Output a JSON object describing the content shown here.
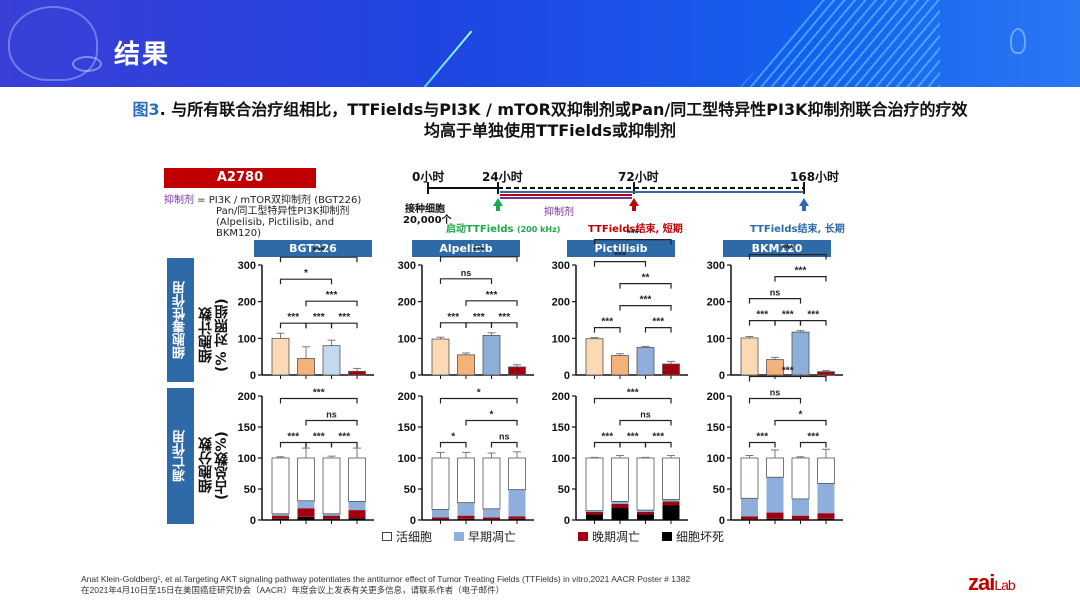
{
  "banner": {
    "title": "结果"
  },
  "figure": {
    "number": "图3",
    "title_line1": ". 与所有联合治疗组相比，TTFields与PI3K / mTOR双抑制剂或Pan/同工型特异性PI3K抑制剂联合治疗的疗效",
    "title_line2": "均高于单独使用TTFields或抑制剂"
  },
  "cell_line": "A2780",
  "inhibitor_def": {
    "label": "抑制剂",
    "eq": " = PI3K / mTOR双抑制剂 (BGT226)",
    "line2": "Pan/同工型特异性PI3K抑制剂",
    "line3": "(Alpelisib, Pictilisib, and",
    "line4": "BKM120)"
  },
  "timeline": {
    "t0": "0小时",
    "t24": "24小时",
    "t72": "72小时",
    "t168": "168小时",
    "seed_line1": "接种细胞",
    "seed_line2": "20,000个",
    "inhibitor": "抑制剂",
    "start": "启动TTFields",
    "start_freq": "(200 kHz)",
    "end_short": "TTFields结束, 短期",
    "end_long": "TTFields结束, 长期",
    "colors": {
      "start": "#1fa84b",
      "end_short": "#c00000",
      "end_long": "#2e6aa8",
      "inhibitor": "#7030a0"
    }
  },
  "row_labels": {
    "cytotoxic": "细胞毒性作用",
    "apoptosis": "凋亡作用"
  },
  "y_labels": {
    "cytotoxic_1": "细胞计数",
    "cytotoxic_2": "(% 对照组)",
    "apoptosis_1": "细胞分数",
    "apoptosis_2": "(占总数%)"
  },
  "legend": {
    "live": "活细胞",
    "early": "早期凋亡",
    "late": "晚期凋亡",
    "necrosis": "细胞坏死"
  },
  "footer": {
    "line1": "Anat Klein-Goldberg¹, et al.Targeting AKT signaling pathway potentiates the antitumor effect of Tumor Treating Fields (TTFields) in vitro,2021 AACR Poster # 1382",
    "line2": "在2021年4月10日至15日在美国癌症研究协会（AACR）年度会议上发表有关更多信息，请联系作者（电子邮件）"
  },
  "logo": {
    "main": "zai",
    "sub": "Lab"
  },
  "chart_data": [
    {
      "type": "bar",
      "title": "BGT226",
      "panel": "cytotoxicity",
      "ylabel": "细胞计数 (% 对照组)",
      "ylim": [
        0,
        300
      ],
      "yticks": [
        0,
        100,
        200,
        300
      ],
      "values": [
        100,
        45,
        80,
        10
      ],
      "errors": [
        14,
        32,
        15,
        8
      ],
      "bar_colors": [
        "#fbd9b4",
        "#f2b27a",
        "#c5d8f0",
        "#a00010"
      ],
      "significance": [
        [
          "1-4",
          "***"
        ],
        [
          "1-2",
          "***"
        ],
        [
          "2-4",
          "***"
        ],
        [
          "1-3",
          "*"
        ],
        [
          "2-3",
          "***"
        ],
        [
          "3-4",
          "***"
        ]
      ]
    },
    {
      "type": "bar",
      "title": "Alpelisib",
      "panel": "cytotoxicity",
      "ylim": [
        0,
        300
      ],
      "yticks": [
        0,
        100,
        200,
        300
      ],
      "values": [
        98,
        55,
        108,
        22
      ],
      "errors": [
        5,
        5,
        7,
        6
      ],
      "bar_colors": [
        "#fbd9b4",
        "#f2b27a",
        "#8eaedb",
        "#a00010"
      ],
      "significance": [
        [
          "1-4",
          "***"
        ],
        [
          "1-2",
          "***"
        ],
        [
          "2-4",
          "***"
        ],
        [
          "1-3",
          "ns"
        ],
        [
          "3-4",
          "***"
        ],
        [
          "2-3",
          "***"
        ]
      ]
    },
    {
      "type": "bar",
      "title": "Pictilisib",
      "panel": "cytotoxicity",
      "ylim": [
        0,
        300
      ],
      "yticks": [
        0,
        100,
        200,
        300
      ],
      "values": [
        99,
        53,
        75,
        30
      ],
      "errors": [
        3,
        5,
        3,
        7
      ],
      "bar_colors": [
        "#fbd9b4",
        "#f2b27a",
        "#8eaedb",
        "#a00010"
      ],
      "significance": [
        [
          "1-4",
          "***"
        ],
        [
          "2-4",
          "***"
        ],
        [
          "1-2",
          "***"
        ],
        [
          "2-4",
          "**"
        ],
        [
          "1-3",
          "***"
        ],
        [
          "3-4",
          "***"
        ]
      ]
    },
    {
      "type": "bar",
      "title": "BKM120",
      "panel": "cytotoxicity",
      "ylim": [
        0,
        300
      ],
      "yticks": [
        0,
        100,
        200,
        300
      ],
      "values": [
        101,
        42,
        117,
        9
      ],
      "errors": [
        4,
        6,
        4,
        3
      ],
      "bar_colors": [
        "#fbd9b4",
        "#f2b27a",
        "#8eaedb",
        "#a00010"
      ],
      "significance": [
        [
          "1-4",
          "***"
        ],
        [
          "1-2",
          "***"
        ],
        [
          "2-3",
          "***"
        ],
        [
          "3-4",
          "***"
        ],
        [
          "1-3",
          "ns"
        ],
        [
          "2-4",
          "***"
        ]
      ]
    },
    {
      "type": "bar",
      "stacked": true,
      "title": "BGT226",
      "panel": "apoptosis",
      "ylabel": "细胞分数 (占总数%)",
      "ylim": [
        0,
        200
      ],
      "yticks": [
        0,
        50,
        100,
        150,
        200
      ],
      "series": [
        {
          "name": "细胞坏死",
          "values": [
            2,
            5,
            2,
            3
          ]
        },
        {
          "name": "晚期凋亡",
          "values": [
            5,
            14,
            5,
            13
          ]
        },
        {
          "name": "早期凋亡",
          "values": [
            3,
            12,
            3,
            14
          ]
        },
        {
          "name": "活细胞",
          "values": [
            90,
            69,
            90,
            70
          ]
        }
      ],
      "total_errors": [
        2,
        16,
        3,
        16
      ],
      "significance": [
        [
          "1-4",
          "***"
        ],
        [
          "2-4",
          "ns"
        ],
        [
          "1-2",
          "***"
        ],
        [
          "2-3",
          "***"
        ],
        [
          "3-4",
          "***"
        ]
      ]
    },
    {
      "type": "bar",
      "stacked": true,
      "title": "Alpelisib",
      "panel": "apoptosis",
      "ylim": [
        0,
        200
      ],
      "yticks": [
        0,
        50,
        100,
        150,
        200
      ],
      "series": [
        {
          "name": "细胞坏死",
          "values": [
            1,
            2,
            1,
            2
          ]
        },
        {
          "name": "晚期凋亡",
          "values": [
            3,
            5,
            3,
            4
          ]
        },
        {
          "name": "早期凋亡",
          "values": [
            13,
            21,
            14,
            43
          ]
        },
        {
          "name": "活细胞",
          "values": [
            83,
            72,
            82,
            51
          ]
        }
      ],
      "total_errors": [
        9,
        9,
        8,
        10
      ],
      "significance": [
        [
          "1-4",
          "*"
        ],
        [
          "2-4",
          "*"
        ],
        [
          "1-2",
          "*"
        ],
        [
          "3-4",
          "ns"
        ]
      ]
    },
    {
      "type": "bar",
      "stacked": true,
      "title": "Pictilisib",
      "panel": "apoptosis",
      "ylim": [
        0,
        200
      ],
      "yticks": [
        0,
        50,
        100,
        150,
        200
      ],
      "series": [
        {
          "name": "细胞坏死",
          "values": [
            9,
            20,
            9,
            24
          ]
        },
        {
          "name": "晚期凋亡",
          "values": [
            4,
            6,
            4,
            6
          ]
        },
        {
          "name": "早期凋亡",
          "values": [
            2,
            4,
            3,
            3
          ]
        },
        {
          "name": "活细胞",
          "values": [
            85,
            70,
            84,
            67
          ]
        }
      ],
      "total_errors": [
        1,
        4,
        1,
        4
      ],
      "significance": [
        [
          "1-4",
          "***"
        ],
        [
          "2-4",
          "ns"
        ],
        [
          "1-2",
          "***"
        ],
        [
          "2-3",
          "***"
        ],
        [
          "3-4",
          "***"
        ]
      ]
    },
    {
      "type": "bar",
      "stacked": true,
      "title": "BKM120",
      "panel": "apoptosis",
      "ylim": [
        0,
        200
      ],
      "yticks": [
        0,
        50,
        100,
        150,
        200
      ],
      "series": [
        {
          "name": "细胞坏死",
          "values": [
            1,
            2,
            1,
            2
          ]
        },
        {
          "name": "晚期凋亡",
          "values": [
            5,
            10,
            6,
            9
          ]
        },
        {
          "name": "早期凋亡",
          "values": [
            29,
            57,
            27,
            48
          ]
        },
        {
          "name": "活细胞",
          "values": [
            65,
            31,
            66,
            41
          ]
        }
      ],
      "total_errors": [
        4,
        13,
        2,
        14
      ],
      "significance": [
        [
          "1-4",
          "***"
        ],
        [
          "1-2",
          "***"
        ],
        [
          "2-4",
          "*"
        ],
        [
          "1-3",
          "ns"
        ],
        [
          "3-4",
          "***"
        ]
      ]
    }
  ]
}
